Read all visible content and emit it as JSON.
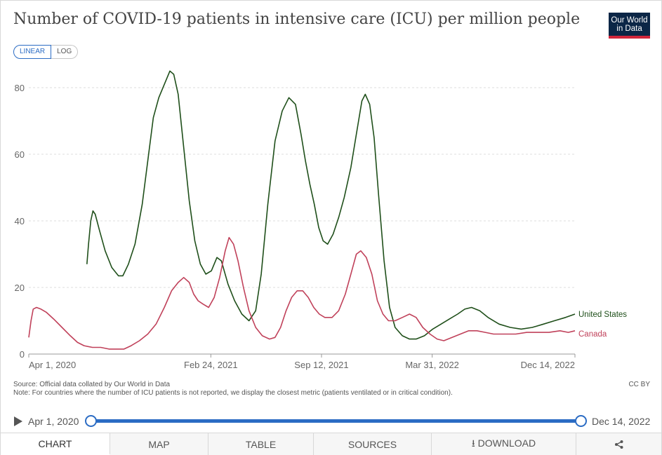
{
  "title": "Number of COVID-19 patients in intensive care (ICU) per million people",
  "logo": {
    "line1": "Our World",
    "line2": "in Data"
  },
  "scale_toggle": {
    "linear": "LINEAR",
    "log": "LOG",
    "selected": "LINEAR"
  },
  "chart_data": {
    "type": "line",
    "title": "Number of COVID-19 patients in intensive care (ICU) per million people",
    "xlabel": "",
    "ylabel": "",
    "ylim": [
      0,
      85
    ],
    "yticks": [
      0,
      20,
      40,
      60,
      80
    ],
    "xticks": [
      {
        "label": "Apr 1, 2020",
        "day": 0
      },
      {
        "label": "Feb 24, 2021",
        "day": 329
      },
      {
        "label": "Sep 12, 2021",
        "day": 529
      },
      {
        "label": "Mar 31, 2022",
        "day": 729
      },
      {
        "label": "Dec 14, 2022",
        "day": 987
      }
    ],
    "x_range_days": [
      0,
      987
    ],
    "grid": true,
    "legend": "inline-right",
    "series": [
      {
        "name": "United States",
        "color": "#1f4f1a",
        "points": [
          [
            105,
            27
          ],
          [
            108,
            33
          ],
          [
            112,
            40
          ],
          [
            116,
            43
          ],
          [
            120,
            42
          ],
          [
            128,
            37
          ],
          [
            138,
            31
          ],
          [
            150,
            26
          ],
          [
            162,
            23.5
          ],
          [
            170,
            23.5
          ],
          [
            180,
            27
          ],
          [
            192,
            33
          ],
          [
            205,
            45
          ],
          [
            215,
            58
          ],
          [
            225,
            71
          ],
          [
            235,
            77
          ],
          [
            245,
            81
          ],
          [
            255,
            85
          ],
          [
            262,
            84
          ],
          [
            270,
            78
          ],
          [
            280,
            62
          ],
          [
            290,
            46
          ],
          [
            300,
            34
          ],
          [
            310,
            27
          ],
          [
            320,
            24
          ],
          [
            330,
            25
          ],
          [
            340,
            29
          ],
          [
            348,
            28
          ],
          [
            360,
            21
          ],
          [
            372,
            16
          ],
          [
            385,
            12
          ],
          [
            398,
            10
          ],
          [
            410,
            13
          ],
          [
            420,
            24
          ],
          [
            432,
            45
          ],
          [
            445,
            64
          ],
          [
            458,
            73
          ],
          [
            470,
            77
          ],
          [
            482,
            75
          ],
          [
            492,
            66
          ],
          [
            500,
            58
          ],
          [
            508,
            51
          ],
          [
            516,
            45
          ],
          [
            524,
            38
          ],
          [
            532,
            34
          ],
          [
            540,
            33
          ],
          [
            550,
            36
          ],
          [
            560,
            41
          ],
          [
            570,
            47
          ],
          [
            582,
            56
          ],
          [
            592,
            66
          ],
          [
            602,
            76
          ],
          [
            608,
            78
          ],
          [
            616,
            75
          ],
          [
            624,
            65
          ],
          [
            632,
            48
          ],
          [
            642,
            28
          ],
          [
            652,
            14
          ],
          [
            662,
            8
          ],
          [
            675,
            5.5
          ],
          [
            688,
            4.5
          ],
          [
            700,
            4.5
          ],
          [
            715,
            5.5
          ],
          [
            730,
            7.5
          ],
          [
            745,
            9
          ],
          [
            760,
            10.5
          ],
          [
            775,
            12
          ],
          [
            788,
            13.5
          ],
          [
            800,
            14
          ],
          [
            815,
            13
          ],
          [
            830,
            11
          ],
          [
            850,
            9
          ],
          [
            870,
            8
          ],
          [
            890,
            7.5
          ],
          [
            910,
            8
          ],
          [
            930,
            9
          ],
          [
            950,
            10
          ],
          [
            970,
            11
          ],
          [
            987,
            12
          ]
        ]
      },
      {
        "name": "Canada",
        "color": "#c0415a",
        "points": [
          [
            0,
            5
          ],
          [
            4,
            10
          ],
          [
            8,
            13.5
          ],
          [
            14,
            14
          ],
          [
            22,
            13.5
          ],
          [
            32,
            12.5
          ],
          [
            45,
            10.5
          ],
          [
            60,
            8
          ],
          [
            75,
            5.5
          ],
          [
            88,
            3.5
          ],
          [
            100,
            2.5
          ],
          [
            115,
            2
          ],
          [
            130,
            2
          ],
          [
            145,
            1.5
          ],
          [
            160,
            1.5
          ],
          [
            172,
            1.5
          ],
          [
            185,
            2.5
          ],
          [
            200,
            4
          ],
          [
            215,
            6
          ],
          [
            230,
            9
          ],
          [
            245,
            14
          ],
          [
            258,
            19
          ],
          [
            270,
            21.5
          ],
          [
            280,
            23
          ],
          [
            290,
            21.5
          ],
          [
            298,
            18
          ],
          [
            306,
            16
          ],
          [
            315,
            15
          ],
          [
            325,
            14
          ],
          [
            335,
            17
          ],
          [
            345,
            23
          ],
          [
            355,
            31
          ],
          [
            362,
            35
          ],
          [
            370,
            33
          ],
          [
            378,
            28
          ],
          [
            388,
            20
          ],
          [
            398,
            13
          ],
          [
            410,
            8
          ],
          [
            422,
            5.5
          ],
          [
            435,
            4.5
          ],
          [
            445,
            5
          ],
          [
            455,
            8
          ],
          [
            465,
            13
          ],
          [
            475,
            17
          ],
          [
            485,
            19
          ],
          [
            495,
            19
          ],
          [
            505,
            17
          ],
          [
            515,
            14
          ],
          [
            525,
            12
          ],
          [
            535,
            11
          ],
          [
            548,
            11
          ],
          [
            560,
            13
          ],
          [
            572,
            18
          ],
          [
            582,
            24
          ],
          [
            592,
            30
          ],
          [
            600,
            31
          ],
          [
            610,
            29
          ],
          [
            620,
            24
          ],
          [
            630,
            16
          ],
          [
            640,
            12
          ],
          [
            650,
            10
          ],
          [
            662,
            10
          ],
          [
            675,
            11
          ],
          [
            688,
            12
          ],
          [
            700,
            11
          ],
          [
            712,
            8
          ],
          [
            725,
            6
          ],
          [
            738,
            4.5
          ],
          [
            750,
            4
          ],
          [
            765,
            5
          ],
          [
            780,
            6
          ],
          [
            795,
            7
          ],
          [
            810,
            7
          ],
          [
            825,
            6.5
          ],
          [
            840,
            6
          ],
          [
            860,
            6
          ],
          [
            880,
            6
          ],
          [
            900,
            6.5
          ],
          [
            920,
            6.5
          ],
          [
            940,
            6.5
          ],
          [
            960,
            7
          ],
          [
            975,
            6.5
          ],
          [
            987,
            7
          ]
        ]
      }
    ]
  },
  "source_text": "Source: Official data collated by Our World in Data",
  "note_text": "Note: For countries where the number of ICU patients is not reported, we display the closest metric (patients ventilated or in critical condition).",
  "license": "CC BY",
  "timeline": {
    "start_label": "Apr 1, 2020",
    "end_label": "Dec 14, 2022",
    "start_fraction": 0,
    "end_fraction": 1
  },
  "tabs": [
    {
      "label": "CHART",
      "active": true
    },
    {
      "label": "MAP"
    },
    {
      "label": "TABLE"
    },
    {
      "label": "SOURCES"
    },
    {
      "label": "⭳ DOWNLOAD"
    },
    {
      "label": "share-icon"
    }
  ]
}
